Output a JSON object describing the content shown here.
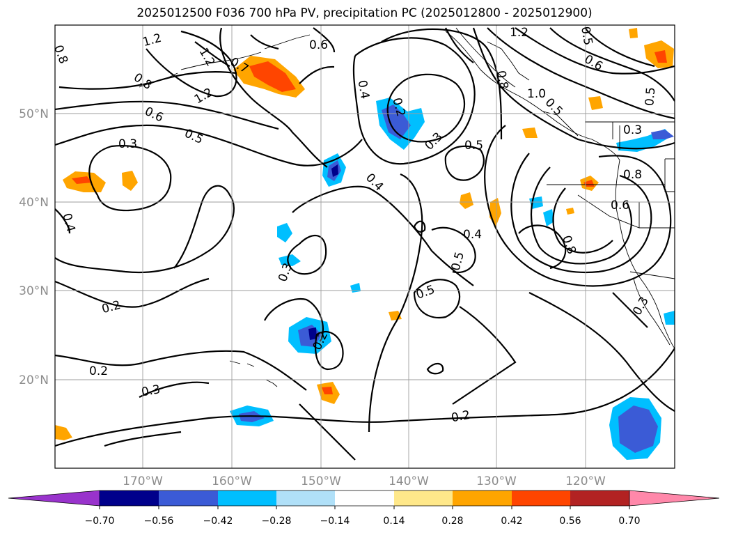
{
  "title": "2025012500 F036 700 hPa PV, precipitation PC (2025012800 - 2025012900)",
  "map": {
    "lat_ticks": [
      "50°N",
      "40°N",
      "30°N",
      "20°N"
    ],
    "lon_ticks": [
      "170°W",
      "160°W",
      "150°W",
      "140°W",
      "130°W",
      "120°W"
    ],
    "contour_labels": [
      "0.8",
      "1.2",
      "1.2",
      "1.2",
      "0.7",
      "0.8",
      "0.6",
      "0.3",
      "0.5",
      "0.4",
      "0.6",
      "0.4",
      "0.2",
      "0.3",
      "0.3",
      "0.5",
      "0.4",
      "0.4",
      "0.5",
      "0.5",
      "0.5",
      "1.2",
      "1.0",
      "0.6",
      "0.5",
      "0.8",
      "0.6",
      "0.8",
      "0.3",
      "0.2",
      "0.2",
      "0.3",
      "0.2",
      "0.2",
      "0.5",
      "0.8",
      "0.3"
    ]
  },
  "colorbar": {
    "levels": [
      "−0.70",
      "−0.56",
      "−0.42",
      "−0.28",
      "−0.14",
      "0.14",
      "0.28",
      "0.42",
      "0.56",
      "0.70"
    ],
    "colors": [
      "#9933cc",
      "#00008b",
      "#3b5bd6",
      "#00bfff",
      "#b0e0f8",
      "#ffffff",
      "#ffe88a",
      "#ffa500",
      "#ff4500",
      "#b22222",
      "#ff88aa"
    ]
  }
}
